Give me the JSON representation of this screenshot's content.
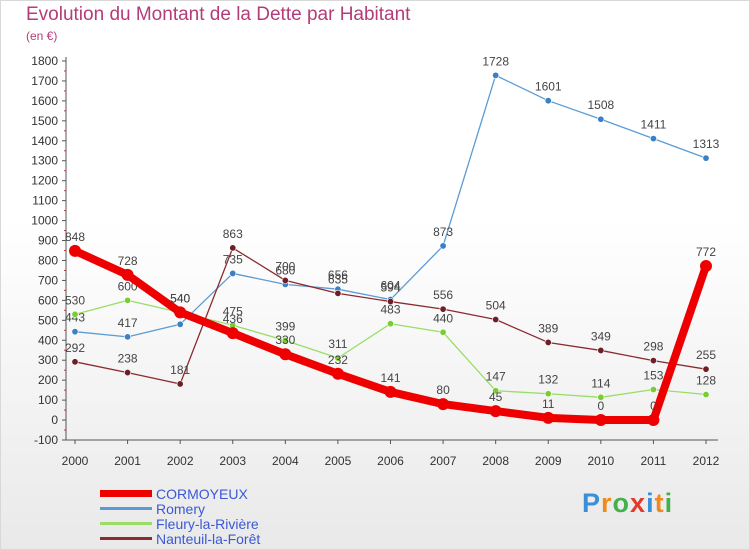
{
  "title": "Evolution du Montant de la Dette par Habitant",
  "subtitle": "(en €)",
  "chart_data": {
    "type": "line",
    "x": [
      "2000",
      "2001",
      "2002",
      "2003",
      "2004",
      "2005",
      "2006",
      "2007",
      "2008",
      "2009",
      "2010",
      "2011",
      "2012"
    ],
    "ylim": [
      -100,
      1800
    ],
    "yticks": [
      -100,
      0,
      100,
      200,
      300,
      400,
      500,
      600,
      700,
      800,
      900,
      1000,
      1100,
      1200,
      1300,
      1400,
      1500,
      1600,
      1700,
      1800
    ],
    "grid": false,
    "series": [
      {
        "name": "Romery",
        "color": "#5b9bd5",
        "marker": "#3a80c2",
        "values": [
          443,
          417,
          480,
          735,
          680,
          656,
          604,
          873,
          1728,
          1601,
          1508,
          1411,
          1313
        ],
        "labels": [
          "443",
          "417",
          "",
          "735",
          "680",
          "656",
          "604",
          "873",
          "1728",
          "1601",
          "1508",
          "1411",
          "1313"
        ]
      },
      {
        "name": "Fleury-la-Rivière",
        "color": "#99dd66",
        "marker": "#7acc33",
        "values": [
          530,
          600,
          540,
          475,
          399,
          311,
          483,
          440,
          147,
          132,
          114,
          153,
          128
        ],
        "labels": [
          "530",
          "600",
          "540",
          "475",
          "399",
          "311",
          "483",
          "440",
          "147",
          "132",
          "114",
          "153",
          "128"
        ]
      },
      {
        "name": "Nanteuil-la-Forêt",
        "color": "#8b2a30",
        "marker": "#6e1f25",
        "values": [
          292,
          238,
          181,
          863,
          700,
          635,
          594,
          556,
          504,
          389,
          349,
          298,
          255
        ],
        "labels": [
          "292",
          "238",
          "181",
          "863",
          "700",
          "635",
          "594",
          "556",
          "504",
          "389",
          "349",
          "298",
          "255"
        ]
      },
      {
        "name": "CORMOYEUX",
        "color": "#ee0000",
        "marker": "#ee0000",
        "values": [
          848,
          728,
          540,
          436,
          330,
          232,
          141,
          80,
          45,
          11,
          0,
          0,
          772
        ],
        "labels": [
          "848",
          "728",
          "540",
          "436",
          "330",
          "232",
          "141",
          "80",
          "45",
          "11",
          "0",
          "0",
          "772"
        ]
      }
    ]
  },
  "legend": {
    "items": [
      {
        "label": "CORMOYEUX",
        "color": "#ee0000"
      },
      {
        "label": "Romery",
        "color": "#5b9bd5"
      },
      {
        "label": "Fleury-la-Rivière",
        "color": "#99dd66"
      },
      {
        "label": "Nanteuil-la-Forêt",
        "color": "#8b2a30"
      }
    ]
  },
  "logo": {
    "letters": [
      "P",
      "r",
      "o",
      "x",
      "i",
      "t",
      "i"
    ],
    "colors": [
      "#3a8fd6",
      "#f08a1c",
      "#45b04a",
      "#e33a2a",
      "#3a8fd6",
      "#f08a1c",
      "#45b04a"
    ]
  }
}
